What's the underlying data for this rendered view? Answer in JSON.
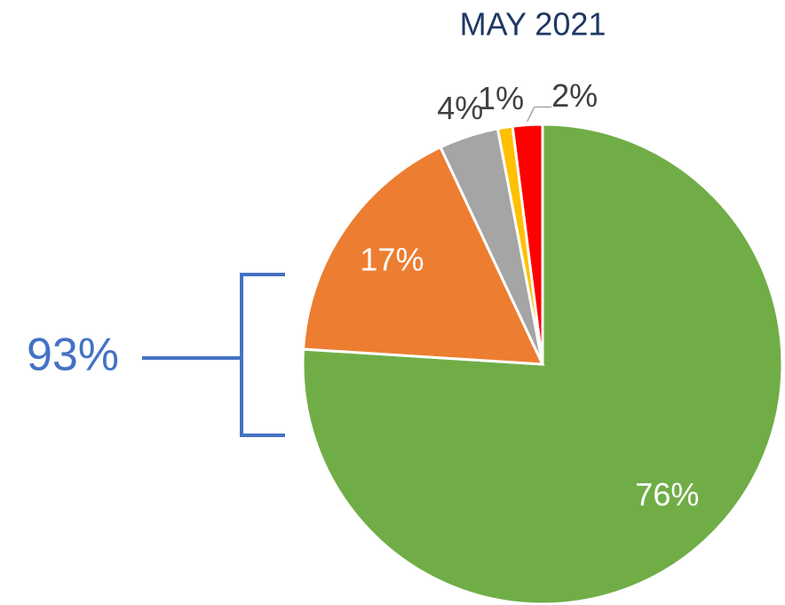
{
  "chart_data": {
    "type": "pie",
    "title": "MAY 2021",
    "values": [
      76,
      17,
      4,
      1,
      2
    ],
    "value_labels": [
      "76%",
      "17%",
      "4%",
      "1%",
      "2%"
    ],
    "colors": [
      "#70ad47",
      "#ed7d31",
      "#a5a5a5",
      "#ffc000",
      "#ff0000"
    ],
    "annotation": "93%"
  }
}
